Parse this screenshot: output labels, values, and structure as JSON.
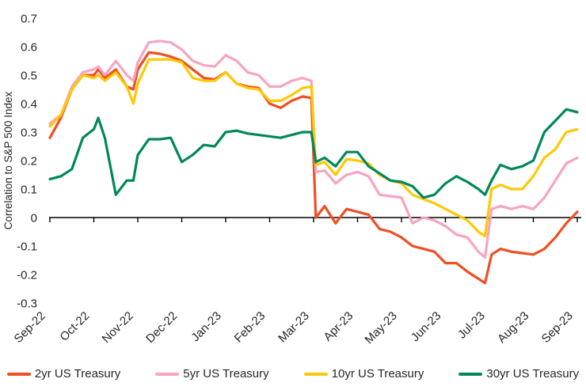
{
  "legend": {
    "items": [
      "2yr US Treasury",
      "5yr US Treasury",
      "10yr US Treasury",
      "30yr US Treasury"
    ]
  },
  "chart_data": {
    "type": "line",
    "title": "",
    "xlabel": "",
    "ylabel": "Correlation to S&P 500 Index",
    "ylim": [
      -0.3,
      0.7
    ],
    "ytick_labels": [
      "0.7",
      "0.6",
      "0.5",
      "0.4",
      "0.3",
      "0.2",
      "0.1",
      "0",
      "-0.1",
      "-0.2",
      "-0.3"
    ],
    "ytick_values": [
      0.7,
      0.6,
      0.5,
      0.4,
      0.3,
      0.2,
      0.1,
      0,
      -0.1,
      -0.2,
      -0.3
    ],
    "xtick_labels": [
      "Sep-22",
      "Oct-22",
      "Nov-22",
      "Dec-22",
      "Jan-23",
      "Feb-23",
      "Mar-23",
      "Apr-23",
      "May-23",
      "Jun-23",
      "Jul-23",
      "Aug-23",
      "Sep-23"
    ],
    "x_unit": "months since Sep-22",
    "grid": false,
    "legend_position": "bottom",
    "x": [
      0,
      0.25,
      0.5,
      0.75,
      1,
      1.1,
      1.25,
      1.5,
      1.75,
      1.9,
      2,
      2.25,
      2.5,
      2.75,
      3,
      3.25,
      3.5,
      3.75,
      4,
      4.25,
      4.5,
      4.75,
      5,
      5.25,
      5.5,
      5.75,
      5.95,
      6.05,
      6.25,
      6.5,
      6.75,
      7,
      7.25,
      7.5,
      7.75,
      8,
      8.25,
      8.5,
      8.75,
      9,
      9.25,
      9.5,
      9.75,
      9.9,
      10.05,
      10.25,
      10.5,
      10.75,
      11,
      11.25,
      11.5,
      11.75,
      12
    ],
    "series": [
      {
        "name": "2yr US Treasury",
        "color": "#F04E23",
        "values": [
          0.28,
          0.35,
          0.45,
          0.5,
          0.5,
          0.52,
          0.49,
          0.52,
          0.46,
          0.45,
          0.52,
          0.58,
          0.575,
          0.565,
          0.55,
          0.52,
          0.49,
          0.485,
          0.51,
          0.47,
          0.46,
          0.455,
          0.4,
          0.385,
          0.41,
          0.425,
          0.42,
          0.0,
          0.04,
          -0.02,
          0.03,
          0.02,
          0.01,
          -0.04,
          -0.05,
          -0.07,
          -0.1,
          -0.11,
          -0.12,
          -0.16,
          -0.16,
          -0.19,
          -0.215,
          -0.23,
          -0.13,
          -0.11,
          -0.12,
          -0.125,
          -0.13,
          -0.11,
          -0.07,
          -0.02,
          0.02
        ]
      },
      {
        "name": "5yr US Treasury",
        "color": "#F8A3C3",
        "values": [
          0.33,
          0.36,
          0.46,
          0.51,
          0.52,
          0.53,
          0.5,
          0.55,
          0.5,
          0.48,
          0.545,
          0.615,
          0.62,
          0.615,
          0.59,
          0.55,
          0.535,
          0.53,
          0.57,
          0.55,
          0.51,
          0.5,
          0.46,
          0.46,
          0.48,
          0.49,
          0.48,
          0.16,
          0.165,
          0.12,
          0.15,
          0.16,
          0.145,
          0.08,
          0.075,
          0.07,
          -0.02,
          0.0,
          -0.01,
          -0.03,
          -0.06,
          -0.07,
          -0.12,
          -0.14,
          0.03,
          0.04,
          0.03,
          0.04,
          0.03,
          0.07,
          0.13,
          0.19,
          0.21
        ]
      },
      {
        "name": "10yr US Treasury",
        "color": "#FFC805",
        "values": [
          0.32,
          0.36,
          0.45,
          0.5,
          0.49,
          0.5,
          0.48,
          0.51,
          0.46,
          0.4,
          0.47,
          0.555,
          0.555,
          0.555,
          0.545,
          0.49,
          0.48,
          0.48,
          0.51,
          0.47,
          0.455,
          0.45,
          0.41,
          0.41,
          0.43,
          0.455,
          0.46,
          0.185,
          0.195,
          0.15,
          0.205,
          0.2,
          0.19,
          0.15,
          0.13,
          0.12,
          0.08,
          0.065,
          0.05,
          0.03,
          0.01,
          -0.01,
          -0.05,
          -0.065,
          0.1,
          0.115,
          0.1,
          0.1,
          0.145,
          0.21,
          0.24,
          0.3,
          0.31
        ]
      },
      {
        "name": "30yr US Treasury",
        "color": "#00875B",
        "values": [
          0.135,
          0.145,
          0.17,
          0.28,
          0.31,
          0.35,
          0.28,
          0.08,
          0.13,
          0.13,
          0.22,
          0.275,
          0.275,
          0.28,
          0.195,
          0.22,
          0.255,
          0.25,
          0.3,
          0.305,
          0.295,
          0.29,
          0.285,
          0.28,
          0.29,
          0.3,
          0.3,
          0.195,
          0.21,
          0.18,
          0.23,
          0.23,
          0.18,
          0.155,
          0.13,
          0.125,
          0.11,
          0.07,
          0.08,
          0.12,
          0.145,
          0.125,
          0.1,
          0.08,
          0.13,
          0.185,
          0.17,
          0.18,
          0.2,
          0.3,
          0.34,
          0.38,
          0.37
        ]
      }
    ],
    "axis_color": "#000000",
    "text_color": "#262626"
  }
}
